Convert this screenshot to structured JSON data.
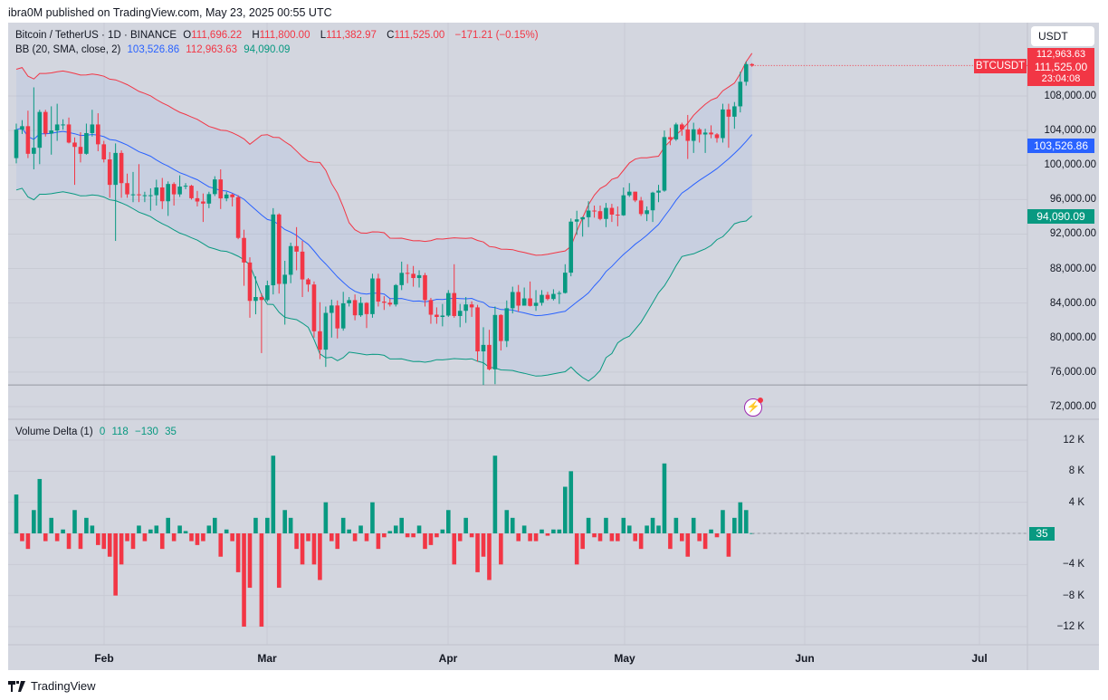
{
  "publisher": "ibra0M published on TradingView.com, May 23, 2025 00:55 UTC",
  "symbol_legend": {
    "title": "Bitcoin / TetherUS · 1D · BINANCE",
    "o_label": "O",
    "o": "111,696.22",
    "h_label": "H",
    "h": "111,800.00",
    "l_label": "L",
    "l": "111,382.97",
    "c_label": "C",
    "c": "111,525.00",
    "change": "−171.21 (−0.15%)"
  },
  "bb_legend": {
    "title": "BB (20, SMA, close, 2)",
    "basis": "103,526.86",
    "upper": "112,963.63",
    "lower": "94,090.09"
  },
  "vd_legend": {
    "title": "Volume Delta (1)",
    "v1": "0",
    "v2": "118",
    "v3": "−130",
    "v4": "35"
  },
  "currency_button": "USDT",
  "symbol_tag": "BTCUSDT",
  "badges": {
    "upper": "112,963.63",
    "last": "111,525.00",
    "countdown": "23:04:08",
    "basis": "103,526.86",
    "lower": "94,090.09",
    "volume": "35"
  },
  "price_axis": [
    "108,000.00",
    "104,000.00",
    "100,000.00",
    "96,000.00",
    "92,000.00",
    "88,000.00",
    "84,000.00",
    "80,000.00",
    "76,000.00",
    "72,000.00"
  ],
  "volume_axis": [
    "12 K",
    "8 K",
    "4 K",
    "0",
    "−4 K",
    "−8 K",
    "−12 K"
  ],
  "time_axis": [
    "Feb",
    "Mar",
    "Apr",
    "May",
    "Jun",
    "Jul"
  ],
  "logo_text": "TradingView",
  "colors": {
    "up": "#089981",
    "down": "#f23645",
    "basis": "#2962ff",
    "upper": "#f23645",
    "lower": "#089981",
    "background": "#d3d6df"
  },
  "icons": {
    "alert": "lightning-icon",
    "logo": "tradingview-logo"
  },
  "chart_data": {
    "type": "candlestick",
    "price_range": [
      72000,
      112963.63
    ],
    "volume_range_k": [
      -12,
      12
    ],
    "indicators": [
      "Bollinger Bands (20, SMA, close, 2)",
      "Volume Delta (1)"
    ],
    "grid": true,
    "candle_fields": [
      "date",
      "open",
      "high",
      "low",
      "close"
    ],
    "candles": [
      [
        "2025-01-17",
        100800,
        104800,
        100200,
        104100
      ],
      [
        "2025-01-18",
        104100,
        105200,
        103600,
        104500
      ],
      [
        "2025-01-19",
        104500,
        106300,
        100800,
        101300
      ],
      [
        "2025-01-20",
        101300,
        109000,
        99500,
        102000
      ],
      [
        "2025-01-21",
        102000,
        106400,
        100100,
        106150
      ],
      [
        "2025-01-22",
        106150,
        106400,
        103300,
        103650
      ],
      [
        "2025-01-23",
        103650,
        106800,
        101200,
        104000
      ],
      [
        "2025-01-24",
        104000,
        107100,
        102800,
        104700
      ],
      [
        "2025-01-25",
        104700,
        105300,
        104100,
        104700
      ],
      [
        "2025-01-26",
        104700,
        105500,
        102500,
        102600
      ],
      [
        "2025-01-27",
        102600,
        103200,
        97700,
        102100
      ],
      [
        "2025-01-28",
        102100,
        103800,
        100300,
        101300
      ],
      [
        "2025-01-29",
        101300,
        104800,
        101200,
        103700
      ],
      [
        "2025-01-30",
        103700,
        106400,
        103300,
        104700
      ],
      [
        "2025-01-31",
        104700,
        106000,
        101600,
        102400
      ],
      [
        "2025-02-01",
        102400,
        102800,
        100300,
        100650
      ],
      [
        "2025-02-02",
        100650,
        101500,
        96200,
        97700
      ],
      [
        "2025-02-03",
        97700,
        102500,
        91200,
        101400
      ],
      [
        "2025-02-04",
        101400,
        101700,
        96200,
        97900
      ],
      [
        "2025-02-05",
        97900,
        99000,
        96200,
        96600
      ],
      [
        "2025-02-06",
        96600,
        99200,
        95700,
        96600
      ],
      [
        "2025-02-07",
        96600,
        100100,
        95700,
        96500
      ],
      [
        "2025-02-08",
        96500,
        96900,
        95700,
        96500
      ],
      [
        "2025-02-09",
        96500,
        97300,
        94700,
        96500
      ],
      [
        "2025-02-10",
        96500,
        98300,
        95300,
        97400
      ],
      [
        "2025-02-11",
        97400,
        98500,
        94900,
        95800
      ],
      [
        "2025-02-12",
        95800,
        98100,
        94100,
        97800
      ],
      [
        "2025-02-13",
        97800,
        98000,
        95300,
        96600
      ],
      [
        "2025-02-14",
        96600,
        98800,
        96300,
        97500
      ],
      [
        "2025-02-15",
        97500,
        97900,
        97200,
        97600
      ],
      [
        "2025-02-16",
        97600,
        97700,
        96000,
        96150
      ],
      [
        "2025-02-17",
        96150,
        97000,
        95200,
        95770
      ],
      [
        "2025-02-18",
        95770,
        96700,
        93400,
        95530
      ],
      [
        "2025-02-19",
        95530,
        96900,
        95000,
        96630
      ],
      [
        "2025-02-20",
        96630,
        98700,
        96400,
        98330
      ],
      [
        "2025-02-21",
        98330,
        99500,
        94900,
        96130
      ],
      [
        "2025-02-22",
        96130,
        96900,
        95800,
        96580
      ],
      [
        "2025-02-23",
        96580,
        96700,
        95200,
        96270
      ],
      [
        "2025-02-24",
        96270,
        96500,
        91400,
        91550
      ],
      [
        "2025-02-25",
        91550,
        92500,
        86000,
        88700
      ],
      [
        "2025-02-26",
        88700,
        89300,
        82300,
        84250
      ],
      [
        "2025-02-27",
        84250,
        87100,
        82700,
        84700
      ],
      [
        "2025-02-28",
        84700,
        85100,
        78200,
        84350
      ],
      [
        "2025-03-01",
        84350,
        86600,
        84200,
        86060
      ],
      [
        "2025-03-02",
        86060,
        95000,
        85000,
        94270
      ],
      [
        "2025-03-03",
        94270,
        94400,
        85100,
        86220
      ],
      [
        "2025-03-04",
        86220,
        88900,
        81500,
        87280
      ],
      [
        "2025-03-05",
        87280,
        91000,
        86300,
        90600
      ],
      [
        "2025-03-06",
        90600,
        92800,
        87800,
        89960
      ],
      [
        "2025-03-07",
        89960,
        91200,
        84700,
        86740
      ],
      [
        "2025-03-08",
        86740,
        86900,
        85300,
        86150
      ],
      [
        "2025-03-09",
        86150,
        86500,
        80000,
        80730
      ],
      [
        "2025-03-10",
        80730,
        84100,
        77500,
        78600
      ],
      [
        "2025-03-11",
        78600,
        83600,
        76600,
        82860
      ],
      [
        "2025-03-12",
        82860,
        84400,
        80000,
        83720
      ],
      [
        "2025-03-13",
        83720,
        84300,
        79900,
        81060
      ],
      [
        "2025-03-14",
        81060,
        85300,
        80800,
        83970
      ],
      [
        "2025-03-15",
        83970,
        84700,
        83600,
        84340
      ],
      [
        "2025-03-16",
        84340,
        85000,
        82000,
        82580
      ],
      [
        "2025-03-17",
        82580,
        84700,
        82400,
        84020
      ],
      [
        "2025-03-18",
        84020,
        84100,
        81100,
        82720
      ],
      [
        "2025-03-19",
        82720,
        87400,
        82300,
        86850
      ],
      [
        "2025-03-20",
        86850,
        87400,
        83600,
        84170
      ],
      [
        "2025-03-21",
        84170,
        84800,
        83200,
        84040
      ],
      [
        "2025-03-22",
        84040,
        84500,
        83600,
        83830
      ],
      [
        "2025-03-23",
        83830,
        86200,
        83600,
        86080
      ],
      [
        "2025-03-24",
        86080,
        88800,
        85500,
        87500
      ],
      [
        "2025-03-25",
        87500,
        88500,
        86300,
        87390
      ],
      [
        "2025-03-26",
        87390,
        88300,
        85900,
        86900
      ],
      [
        "2025-03-27",
        86900,
        87800,
        85800,
        87230
      ],
      [
        "2025-03-28",
        87230,
        87500,
        83600,
        84350
      ],
      [
        "2025-03-29",
        84350,
        84600,
        81600,
        82650
      ],
      [
        "2025-03-30",
        82650,
        83500,
        81600,
        82390
      ],
      [
        "2025-03-31",
        82390,
        83900,
        81300,
        82550
      ],
      [
        "2025-04-01",
        82550,
        85500,
        82400,
        85160
      ],
      [
        "2025-04-02",
        85160,
        88500,
        82300,
        82500
      ],
      [
        "2025-04-03",
        82500,
        83900,
        81200,
        83100
      ],
      [
        "2025-04-04",
        83100,
        84700,
        81700,
        83840
      ],
      [
        "2025-04-05",
        83840,
        84200,
        82400,
        83500
      ],
      [
        "2025-04-06",
        83500,
        83800,
        77200,
        78400
      ],
      [
        "2025-04-07",
        78400,
        81200,
        74500,
        79150
      ],
      [
        "2025-04-08",
        79150,
        80900,
        76200,
        76320
      ],
      [
        "2025-04-09",
        76320,
        83600,
        74600,
        82620
      ],
      [
        "2025-04-10",
        82620,
        82700,
        78500,
        79600
      ],
      [
        "2025-04-11",
        79600,
        84300,
        78900,
        83400
      ],
      [
        "2025-04-12",
        83400,
        85900,
        82800,
        85280
      ],
      [
        "2025-04-13",
        85280,
        86100,
        83000,
        83700
      ],
      [
        "2025-04-14",
        83700,
        85800,
        83700,
        84540
      ],
      [
        "2025-04-15",
        84540,
        86500,
        83600,
        83670
      ],
      [
        "2025-04-16",
        83670,
        85500,
        83100,
        84030
      ],
      [
        "2025-04-17",
        84030,
        85500,
        83700,
        84950
      ],
      [
        "2025-04-18",
        84950,
        85300,
        84300,
        84470
      ],
      [
        "2025-04-19",
        84470,
        85600,
        84300,
        85060
      ],
      [
        "2025-04-20",
        85060,
        85400,
        83900,
        85170
      ],
      [
        "2025-04-21",
        85170,
        88500,
        85100,
        87520
      ],
      [
        "2025-04-22",
        87520,
        93800,
        87100,
        93440
      ],
      [
        "2025-04-23",
        93440,
        94700,
        91900,
        93700
      ],
      [
        "2025-04-24",
        93700,
        94000,
        91700,
        93950
      ],
      [
        "2025-04-25",
        93950,
        95800,
        92800,
        94720
      ],
      [
        "2025-04-26",
        94720,
        95300,
        93900,
        94650
      ],
      [
        "2025-04-27",
        94650,
        95300,
        93600,
        93750
      ],
      [
        "2025-04-28",
        93750,
        95600,
        92800,
        95030
      ],
      [
        "2025-04-29",
        95030,
        95500,
        93400,
        94250
      ],
      [
        "2025-04-30",
        94250,
        95200,
        92900,
        94170
      ],
      [
        "2025-05-01",
        94170,
        97400,
        94100,
        96490
      ],
      [
        "2025-05-02",
        96490,
        97900,
        96300,
        96910
      ],
      [
        "2025-05-03",
        96910,
        96900,
        95700,
        95890
      ],
      [
        "2025-05-04",
        95890,
        96300,
        94100,
        94320
      ],
      [
        "2025-05-05",
        94320,
        95200,
        93500,
        94750
      ],
      [
        "2025-05-06",
        94750,
        96900,
        93400,
        96800
      ],
      [
        "2025-05-07",
        96800,
        97700,
        95700,
        97030
      ],
      [
        "2025-05-08",
        97030,
        104000,
        96900,
        103240
      ],
      [
        "2025-05-09",
        103240,
        104300,
        102300,
        102970
      ],
      [
        "2025-05-10",
        102970,
        104900,
        102800,
        104700
      ],
      [
        "2025-05-11",
        104700,
        104900,
        103400,
        104120
      ],
      [
        "2025-05-12",
        104120,
        105800,
        100700,
        102800
      ],
      [
        "2025-05-13",
        102800,
        104900,
        101400,
        104140
      ],
      [
        "2025-05-14",
        104140,
        104300,
        102600,
        103540
      ],
      [
        "2025-05-15",
        103540,
        104200,
        101400,
        103760
      ],
      [
        "2025-05-16",
        103760,
        104600,
        103100,
        103550
      ],
      [
        "2025-05-17",
        103550,
        103700,
        102600,
        103120
      ],
      [
        "2025-05-18",
        103120,
        107100,
        102600,
        106440
      ],
      [
        "2025-05-19",
        106440,
        107100,
        102000,
        105600
      ],
      [
        "2025-05-20",
        105600,
        107300,
        104200,
        106800
      ],
      [
        "2025-05-21",
        106800,
        110800,
        106100,
        109650
      ],
      [
        "2025-05-22",
        109650,
        112000,
        109200,
        111696.22
      ],
      [
        "2025-05-23",
        111696.22,
        111800,
        111382.97,
        111525
      ]
    ],
    "volume_delta_k": [
      5,
      -1,
      -2,
      3,
      7,
      -1,
      2,
      -1,
      0.5,
      -2,
      3,
      -2,
      2,
      1,
      -1.5,
      -2,
      -3,
      -8,
      -4,
      -1,
      -2,
      1,
      -1,
      0.5,
      1,
      -2,
      2,
      -1,
      1,
      0.3,
      -1,
      -1.5,
      -1,
      1,
      2,
      -3,
      0.5,
      -1,
      -5,
      -12,
      -7,
      2,
      -12,
      2,
      10,
      -7,
      3,
      2,
      -2,
      -4,
      -1,
      -4,
      -6,
      4,
      -1,
      -2,
      2,
      0.5,
      -1,
      1,
      -1,
      4,
      -2,
      -0.5,
      0.3,
      1,
      2,
      -0.5,
      -0.5,
      1,
      -2,
      -1.5,
      -0.5,
      0.5,
      3,
      -4,
      -1,
      2,
      -0.5,
      -5,
      -3,
      -6,
      10,
      -4,
      3,
      2,
      -1,
      1,
      -1,
      -1,
      0.5,
      -0.3,
      0.5,
      0.5,
      6,
      8,
      -4,
      -2,
      2,
      -0.5,
      -1,
      2,
      -1,
      -1,
      2,
      1,
      -1,
      -2,
      1,
      2,
      1,
      9,
      -2,
      2,
      -1,
      -3,
      2,
      -1,
      -2,
      0.5,
      -0.5,
      3,
      -3,
      2,
      4,
      3,
      0.035
    ],
    "min_line": 74500
  }
}
